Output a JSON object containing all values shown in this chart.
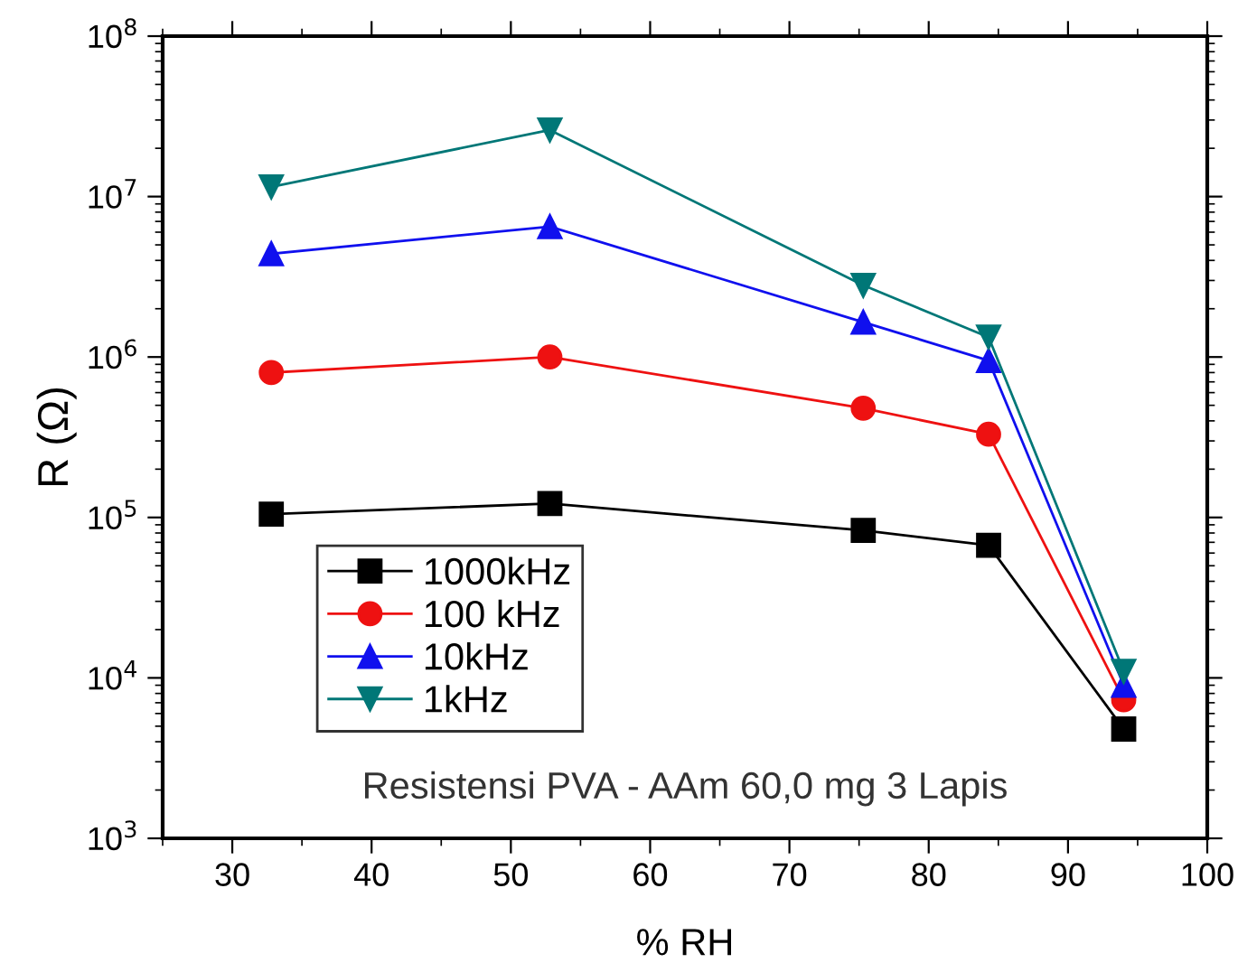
{
  "chart_data": {
    "type": "line",
    "xlabel": "% RH",
    "ylabel": "R (Ω)",
    "log": "y",
    "x": [
      32.8,
      52.8,
      75.3,
      84.3,
      94
    ],
    "series": [
      {
        "name": "1000kHz",
        "color": "#000000",
        "marker": "square",
        "values": [
          105000,
          122000,
          83000,
          67000,
          4800
        ]
      },
      {
        "name": "100 kHz",
        "color": "#ee1111",
        "marker": "circle",
        "values": [
          800000,
          1000000,
          480000,
          330000,
          7300
        ]
      },
      {
        "name": "10kHz",
        "color": "#1010ee",
        "marker": "triangle",
        "values": [
          4400000,
          6500000,
          1650000,
          950000,
          9000
        ]
      },
      {
        "name": "1kHz",
        "color": "#007777",
        "marker": "triangle_down",
        "values": [
          11500000,
          26000000,
          2800000,
          1330000,
          11000
        ]
      }
    ],
    "xlim": [
      25,
      100
    ],
    "xticks": [
      30,
      40,
      50,
      60,
      70,
      80,
      90,
      100
    ],
    "ylim": [
      1000,
      100000000
    ],
    "yticks": [
      {
        "value": 1000,
        "label": "10$^{3}$"
      },
      {
        "value": 10000,
        "label": "10$^{4}$"
      },
      {
        "value": 100000,
        "label": "10$^{5}$"
      },
      {
        "value": 1000000,
        "label": "10$^{6}$"
      },
      {
        "value": 10000000,
        "label": "10$^{7}$"
      },
      {
        "value": 100000000,
        "label": "10$^{8}$"
      }
    ],
    "legend": "bottom left",
    "grid": false,
    "annotations": [
      "Resistensi PVA - AAm 60,0 mg 3 Lapis"
    ]
  }
}
